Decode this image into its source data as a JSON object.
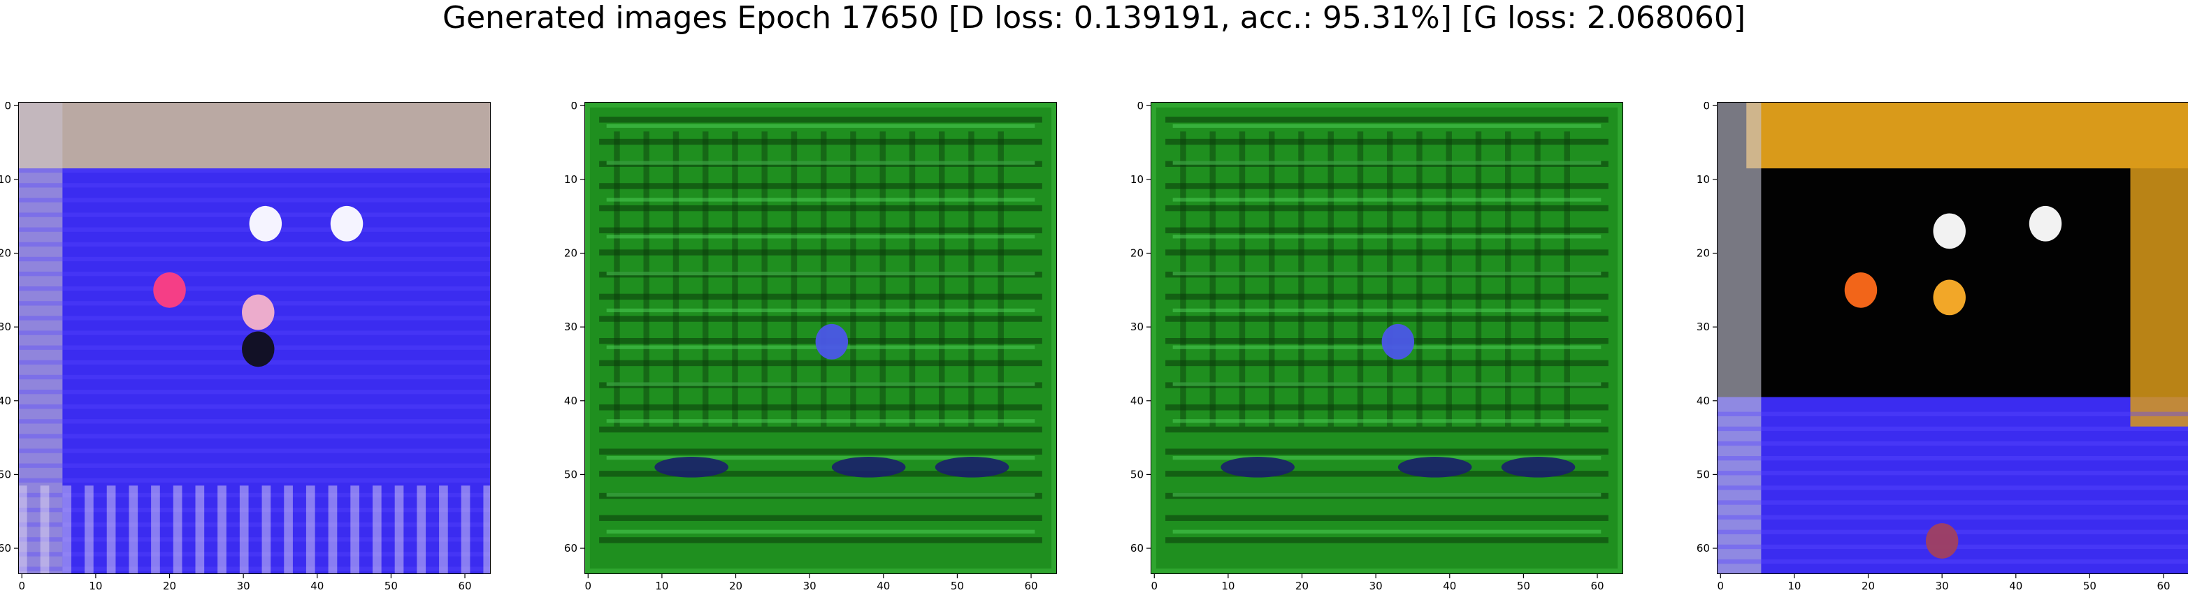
{
  "title": "Generated images Epoch 17650 [D loss: 0.139191, acc.: 95.31%] [G loss: 2.068060]",
  "chart_data": [
    {
      "type": "heatmap",
      "grid": false,
      "xlim": [
        -0.5,
        63.5
      ],
      "ylim": [
        63.5,
        -0.5
      ],
      "xticks": [
        0,
        10,
        20,
        30,
        40,
        50,
        60
      ],
      "yticks": [
        0,
        10,
        20,
        30,
        40,
        50,
        60
      ],
      "palette": {
        "base": "#3b2cf0",
        "top": "#c9b79a",
        "accent": "#ff4fa0",
        "bright": "#ffffff"
      },
      "blobs": [
        {
          "label": "pink-spot",
          "x": 20,
          "y": 25,
          "color": "#ff3f7f"
        },
        {
          "label": "pink-spot-2",
          "x": 32,
          "y": 28,
          "color": "#f5b3c9"
        },
        {
          "label": "white-spot",
          "x": 33,
          "y": 16,
          "color": "#ffffff"
        },
        {
          "label": "white-spot-2",
          "x": 44,
          "y": 16,
          "color": "#ffffff"
        },
        {
          "label": "dark-spot",
          "x": 32,
          "y": 33,
          "color": "#10101a"
        }
      ]
    },
    {
      "type": "heatmap",
      "grid": false,
      "xlim": [
        -0.5,
        63.5
      ],
      "ylim": [
        63.5,
        -0.5
      ],
      "xticks": [
        0,
        10,
        20,
        30,
        40,
        50,
        60
      ],
      "yticks": [
        0,
        10,
        20,
        30,
        40,
        50,
        60
      ],
      "palette": {
        "base": "#1f8f1f",
        "stripe": "#0a3a0a",
        "light": "#4fd25a"
      },
      "blobs": [
        {
          "label": "blue-blob",
          "x": 33,
          "y": 32,
          "color": "#4b57e8"
        },
        {
          "label": "dark-streak-1",
          "x": 14,
          "y": 49,
          "color": "#1a1f6b"
        },
        {
          "label": "dark-streak-2",
          "x": 38,
          "y": 49,
          "color": "#1a1f6b"
        },
        {
          "label": "dark-streak-3",
          "x": 52,
          "y": 49,
          "color": "#1a1f6b"
        }
      ]
    },
    {
      "type": "heatmap",
      "grid": false,
      "xlim": [
        -0.5,
        63.5
      ],
      "ylim": [
        63.5,
        -0.5
      ],
      "xticks": [
        0,
        10,
        20,
        30,
        40,
        50,
        60
      ],
      "yticks": [
        0,
        10,
        20,
        30,
        40,
        50,
        60
      ],
      "palette": {
        "base": "#1f8f1f",
        "stripe": "#0a3a0a",
        "light": "#4fd25a"
      },
      "blobs": [
        {
          "label": "blue-blob",
          "x": 33,
          "y": 32,
          "color": "#4b57e8"
        },
        {
          "label": "dark-streak-1",
          "x": 14,
          "y": 49,
          "color": "#1a1f6b"
        },
        {
          "label": "dark-streak-2",
          "x": 38,
          "y": 49,
          "color": "#1a1f6b"
        },
        {
          "label": "dark-streak-3",
          "x": 52,
          "y": 49,
          "color": "#1a1f6b"
        }
      ]
    },
    {
      "type": "heatmap",
      "grid": false,
      "xlim": [
        -0.5,
        63.5
      ],
      "ylim": [
        63.5,
        -0.5
      ],
      "xticks": [
        0,
        10,
        20,
        30,
        40,
        50,
        60
      ],
      "yticks": [
        0,
        10,
        20,
        30,
        40,
        50,
        60
      ],
      "palette": {
        "base": "#3b2cf0",
        "frame": "#d99a1a",
        "dark": "#020202",
        "left": "#c8c8d8"
      },
      "blobs": [
        {
          "label": "white-spot",
          "x": 31,
          "y": 17,
          "color": "#ffffff"
        },
        {
          "label": "white-spot-2",
          "x": 44,
          "y": 16,
          "color": "#ffffff"
        },
        {
          "label": "orange-spot",
          "x": 19,
          "y": 25,
          "color": "#ff6a1a"
        },
        {
          "label": "orange-spot-2",
          "x": 31,
          "y": 26,
          "color": "#ffb02a"
        },
        {
          "label": "bottom-blob",
          "x": 30,
          "y": 59,
          "color": "#a04060"
        }
      ]
    }
  ]
}
